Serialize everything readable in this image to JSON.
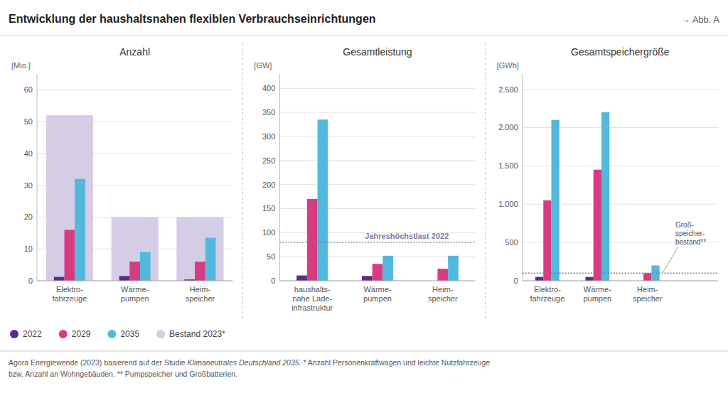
{
  "title": "Entwicklung der haushaltsnahen flexiblen Verbrauchseinrichtungen",
  "subtitle": "→ Abb. A",
  "annotations": [
    "Agora Energiewende (2023) basierend auf der Studie ",
    "Klimaneutrales Deutschland 2035",
    ". * Anzahl Personenkraftwagen und leichte Nutzfahrzeuge",
    "bzw. Anzahl an Wohngebäuden. ** Pumpspeicher und Großbatterien."
  ],
  "chart_data": [
    {
      "type": "bar",
      "title": "Anzahl",
      "ylabel": "[Mio.]",
      "categories": [
        "Elektro-\nfahrzeuge",
        "Wärme-\npumpen",
        "Heim-\nspeicher"
      ],
      "series": [
        {
          "name": "2022",
          "color": "#5c2d84",
          "values": [
            1.2,
            1.5,
            0.4
          ]
        },
        {
          "name": "2029",
          "color": "#d63c82",
          "values": [
            16,
            6,
            6
          ]
        },
        {
          "name": "2035",
          "color": "#52b8dc",
          "values": [
            32,
            9,
            13.5
          ]
        },
        {
          "name": "Bestand 2023*",
          "color": "#d5cce5",
          "values": [
            52,
            20,
            20
          ],
          "type": "backdrop"
        }
      ],
      "ylim": [
        0,
        65
      ],
      "yticks": [
        0,
        10,
        20,
        30,
        40,
        50,
        60
      ],
      "grid": true,
      "legend": "bottom",
      "marker": "circle"
    },
    {
      "type": "bar",
      "title": "Gesamtleistung",
      "ylabel": "[GW]",
      "categories": [
        "haushalts-\nnahe Lade-\ninfrastruktur",
        "Wärme-\npumpen",
        "Heim-\nspeicher"
      ],
      "series": [
        {
          "color": "#5c2d84",
          "values": [
            11,
            10,
            0
          ]
        },
        {
          "color": "#d63c82",
          "values": [
            170,
            35,
            25
          ]
        },
        {
          "color": "#52b8dc",
          "values": [
            335,
            52,
            52
          ]
        }
      ],
      "ylim": [
        0,
        430
      ],
      "yticks": [
        0,
        50,
        100,
        150,
        200,
        250,
        300,
        350,
        400
      ],
      "grid": true,
      "annotations": [
        {
          "label": "Jahreshöchstlast 2022",
          "y": 80
        }
      ]
    },
    {
      "type": "bar",
      "title": "Gesamtspeichergröße",
      "ylabel": "[GWh]",
      "categories": [
        "Elektro-\nfahrzeuge",
        "Wärme-\npumpen",
        "Heim-\nspeicher"
      ],
      "series": [
        {
          "color": "#5c2d84",
          "values": [
            50,
            50,
            0
          ]
        },
        {
          "color": "#d63c82",
          "values": [
            1050,
            1450,
            100
          ]
        },
        {
          "color": "#52b8dc",
          "values": [
            2100,
            2200,
            200
          ]
        }
      ],
      "ylim": [
        0,
        2700
      ],
      "yticks": [
        0,
        500,
        {
          "value": 1000,
          "label": "1.000"
        },
        {
          "value": 1500,
          "label": "1.500"
        },
        {
          "value": 2000,
          "label": "2.000"
        },
        {
          "value": 2500,
          "label": "2.500"
        }
      ],
      "grid": true,
      "annotations": [
        {
          "label": "Groß-\nspeicher-\nbestand**",
          "y": 100
        }
      ]
    }
  ]
}
